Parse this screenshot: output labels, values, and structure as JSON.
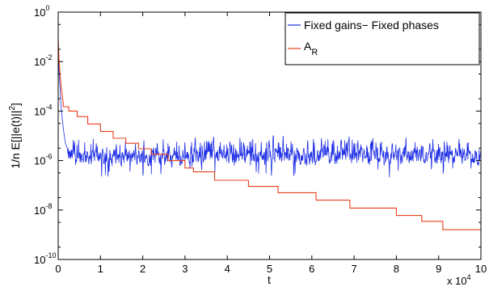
{
  "chart_data": {
    "type": "line",
    "title": "",
    "xlabel": "t",
    "ylabel_main": "1/n E[||e(t)||",
    "ylabel_sup": "2",
    "ylabel_close": "]",
    "xlim": [
      0,
      100000
    ],
    "ylim": [
      1e-10,
      1
    ],
    "yscale": "log",
    "x_ticks": [
      0,
      1,
      2,
      3,
      4,
      5,
      6,
      7,
      8,
      9,
      10
    ],
    "x_multiplier_base": "x 10",
    "x_multiplier_exp": "4",
    "x_multiplier": 10000,
    "y_tick_exponents": [
      -10,
      -8,
      -6,
      -4,
      -2,
      0
    ],
    "y_tick_base": "10",
    "grid": false,
    "legend_position": "top-right",
    "series": [
      {
        "name_main": "Fixed gains− Fixed phases",
        "name_sub": "",
        "color": "#1f2fe6",
        "kind": "noisy",
        "initial": [
          [
            0,
            0.05
          ],
          [
            100,
            0.012
          ],
          [
            200,
            0.004
          ],
          [
            400,
            0.001
          ],
          [
            600,
            0.00025
          ],
          [
            900,
            6e-05
          ],
          [
            1300,
            1.5e-05
          ],
          [
            1700,
            5e-06
          ],
          [
            2200,
            3e-06
          ]
        ],
        "steady_median": 1.5e-06,
        "steady_min": 8e-08,
        "steady_max": 1.5e-05,
        "x_end": 100000
      },
      {
        "name_main": "A",
        "name_sub": "R",
        "color": "#e8401c",
        "kind": "step",
        "initial": [
          [
            0,
            0.08
          ],
          [
            100,
            0.03
          ],
          [
            200,
            0.012
          ],
          [
            400,
            0.004
          ],
          [
            600,
            0.0015
          ],
          [
            900,
            0.0005
          ],
          [
            1200,
            0.0002
          ]
        ],
        "steps": [
          [
            1200,
            0.00015
          ],
          [
            2500,
            0.0001
          ],
          [
            4500,
            6e-05
          ],
          [
            7000,
            3e-05
          ],
          [
            10000,
            1.5e-05
          ],
          [
            13000,
            8e-06
          ],
          [
            16000,
            5e-06
          ],
          [
            19000,
            3e-06
          ],
          [
            22000,
            1.8e-06
          ],
          [
            26000,
            1e-06
          ],
          [
            30000,
            5e-07
          ],
          [
            32000,
            3.5e-07
          ],
          [
            37000,
            1.6e-07
          ],
          [
            45000,
            9e-08
          ],
          [
            52000,
            5e-08
          ],
          [
            61000,
            2.5e-08
          ],
          [
            69000,
            1.2e-08
          ],
          [
            80000,
            6e-09
          ],
          [
            86000,
            3.5e-09
          ],
          [
            91000,
            1.6e-09
          ],
          [
            100000,
            1.6e-09
          ]
        ]
      }
    ]
  }
}
